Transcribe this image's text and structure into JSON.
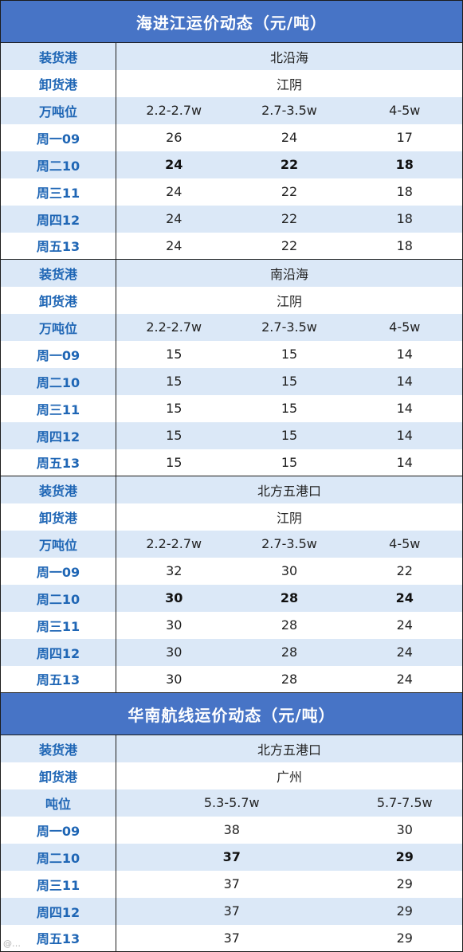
{
  "table1": {
    "title": "海进江运价动态（元/吨）",
    "sections": [
      {
        "loading_label": "装货港",
        "loading_port": "北沿海",
        "unloading_label": "卸货港",
        "unloading_port": "江阴",
        "tonnage_label": "万吨位",
        "tonnage": [
          "2.2-2.7w",
          "2.7-3.5w",
          "4-5w"
        ],
        "rows": [
          {
            "day": "周一09",
            "v": [
              "26",
              "24",
              "17"
            ]
          },
          {
            "day": "周二10",
            "v": [
              "24",
              "22",
              "18"
            ]
          },
          {
            "day": "周三11",
            "v": [
              "24",
              "22",
              "18"
            ]
          },
          {
            "day": "周四12",
            "v": [
              "24",
              "22",
              "18"
            ]
          },
          {
            "day": "周五13",
            "v": [
              "24",
              "22",
              "18"
            ]
          }
        ]
      },
      {
        "loading_label": "装货港",
        "loading_port": "南沿海",
        "unloading_label": "卸货港",
        "unloading_port": "江阴",
        "tonnage_label": "万吨位",
        "tonnage": [
          "2.2-2.7w",
          "2.7-3.5w",
          "4-5w"
        ],
        "rows": [
          {
            "day": "周一09",
            "v": [
              "15",
              "15",
              "14"
            ]
          },
          {
            "day": "周二10",
            "v": [
              "15",
              "15",
              "14"
            ]
          },
          {
            "day": "周三11",
            "v": [
              "15",
              "15",
              "14"
            ]
          },
          {
            "day": "周四12",
            "v": [
              "15",
              "15",
              "14"
            ]
          },
          {
            "day": "周五13",
            "v": [
              "15",
              "15",
              "14"
            ]
          }
        ]
      },
      {
        "loading_label": "装货港",
        "loading_port": "北方五港口",
        "unloading_label": "卸货港",
        "unloading_port": "江阴",
        "tonnage_label": "万吨位",
        "tonnage": [
          "2.2-2.7w",
          "2.7-3.5w",
          "4-5w"
        ],
        "rows": [
          {
            "day": "周一09",
            "v": [
              "32",
              "30",
              "22"
            ]
          },
          {
            "day": "周二10",
            "v": [
              "30",
              "28",
              "24"
            ]
          },
          {
            "day": "周三11",
            "v": [
              "30",
              "28",
              "24"
            ]
          },
          {
            "day": "周四12",
            "v": [
              "30",
              "28",
              "24"
            ]
          },
          {
            "day": "周五13",
            "v": [
              "30",
              "28",
              "24"
            ]
          }
        ]
      }
    ]
  },
  "table2": {
    "title": "华南航线运价动态（元/吨）",
    "loading_label": "装货港",
    "loading_port": "北方五港口",
    "unloading_label": "卸货港",
    "unloading_port": "广州",
    "tonnage_label": "吨位",
    "tonnage": [
      "5.3-5.7w",
      "5.7-7.5w"
    ],
    "rows": [
      {
        "day": "周一09",
        "v": [
          "38",
          "30"
        ]
      },
      {
        "day": "周二10",
        "v": [
          "37",
          "29"
        ]
      },
      {
        "day": "周三11",
        "v": [
          "37",
          "29"
        ]
      },
      {
        "day": "周四12",
        "v": [
          "37",
          "29"
        ]
      },
      {
        "day": "周五13",
        "v": [
          "37",
          "29"
        ]
      }
    ]
  },
  "watermark": "@…"
}
